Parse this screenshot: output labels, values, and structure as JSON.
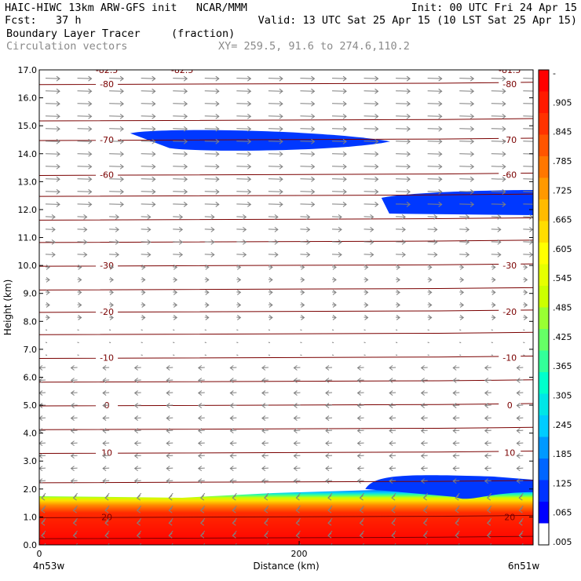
{
  "header": {
    "line1_left": "HAIC-HIWC 13km ARW-GFS init   NCAR/MMM",
    "line1_right": "Init: 00 UTC Fri 24 Apr 15",
    "line2_left": "Fcst:   37 h",
    "line2_right": "Valid: 13 UTC Sat 25 Apr 15 (10 LST Sat 25 Apr 15)",
    "line3_left": "Boundary Layer Tracer",
    "line3_mid": "(fraction)",
    "line4_left": "Circulation vectors",
    "line4_mid": "XY= 259.5, 91.6 to 274.6,110.2"
  },
  "chart_data": {
    "type": "heatmap",
    "xlabel": "Distance (km)",
    "ylabel": "Height (km)",
    "xlim": [
      0,
      380
    ],
    "ylim": [
      0,
      17
    ],
    "x_ticks": [
      {
        "value": 0,
        "label": "0"
      },
      {
        "value": 200,
        "label": "200"
      }
    ],
    "x_end_labels": {
      "left": "4n53w",
      "right": "6n51w"
    },
    "y_ticks": [
      "0.0",
      "1.0",
      "2.0",
      "3.0",
      "4.0",
      "5.0",
      "6.0",
      "7.0",
      "8.0",
      "9.0",
      "10.0",
      "11.0",
      "12.0",
      "13.0",
      "14.0",
      "15.0",
      "16.0",
      "17.0"
    ],
    "colorbar": {
      "labels": [
        "-",
        ".905",
        ".845",
        ".785",
        ".725",
        ".665",
        ".605",
        ".545",
        ".485",
        ".425",
        ".365",
        ".305",
        ".245",
        ".185",
        ".125",
        ".065",
        ".005"
      ],
      "colors": [
        "#ff0000",
        "#ff1a00",
        "#ff3300",
        "#ff5500",
        "#ff7700",
        "#ff9900",
        "#ffbb00",
        "#ffdd00",
        "#ffff00",
        "#e6ff00",
        "#ccff00",
        "#99ff33",
        "#66ff66",
        "#33ff99",
        "#00ffcc",
        "#00e6e6",
        "#00ccff",
        "#0099ff",
        "#0066ff",
        "#0033ff",
        "#0000ff",
        "#ffffff"
      ]
    },
    "temperature_contours": [
      {
        "height": 0.25,
        "label": ""
      },
      {
        "height": 1.0,
        "label": "20"
      },
      {
        "height": 2.25,
        "label": ""
      },
      {
        "height": 3.3,
        "label": "10"
      },
      {
        "height": 4.15,
        "label": ""
      },
      {
        "height": 5.0,
        "label": "0"
      },
      {
        "height": 5.85,
        "label": ""
      },
      {
        "height": 6.7,
        "label": "-10"
      },
      {
        "height": 7.55,
        "label": ""
      },
      {
        "height": 8.35,
        "label": "-20"
      },
      {
        "height": 9.15,
        "label": ""
      },
      {
        "height": 10.0,
        "label": "-30"
      },
      {
        "height": 10.85,
        "label": ""
      },
      {
        "height": 11.65,
        "label": ""
      },
      {
        "height": 12.5,
        "label": ""
      },
      {
        "height": 13.25,
        "label": "-60"
      },
      {
        "height": 14.5,
        "label": "-70"
      },
      {
        "height": 15.2,
        "label": ""
      },
      {
        "height": 16.5,
        "label": "-80"
      }
    ],
    "top_labels": [
      "-82.5",
      "-81.5"
    ],
    "tracer_features": [
      {
        "name": "boundary layer",
        "x_range": [
          0,
          380
        ],
        "height_range": [
          0,
          1.8
        ]
      },
      {
        "name": "upper blob 1",
        "x_range": [
          70,
          270
        ],
        "height_range": [
          14.2,
          14.9
        ]
      },
      {
        "name": "upper blob 2",
        "x_range": [
          250,
          380
        ],
        "height_range": [
          11.8,
          12.7
        ]
      },
      {
        "name": "mid blob",
        "x_range": [
          240,
          380
        ],
        "height_range": [
          2.0,
          2.5
        ]
      }
    ]
  }
}
